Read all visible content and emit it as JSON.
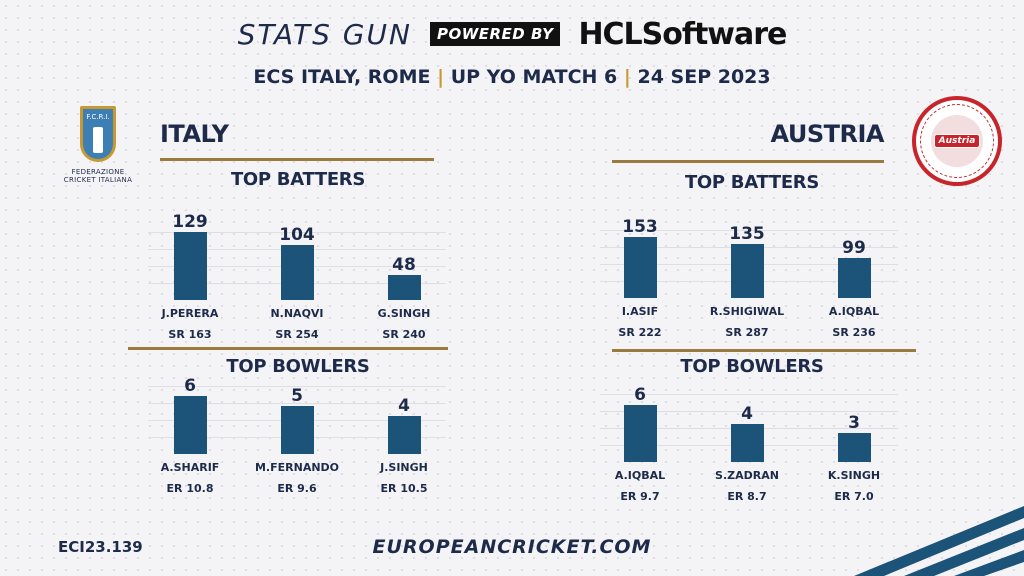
{
  "header": {
    "brand": "STATS GUN",
    "powered_by": "POWERED BY",
    "sponsor": "HCLSoftware",
    "subtitle_parts": [
      "ECS ITALY, ROME",
      "UP YO MATCH 6",
      "24 SEP 2023"
    ],
    "separator": "|"
  },
  "crests": {
    "italy": {
      "shield_text": "F.C.R.I.",
      "caption_lines": [
        "FEDERAZIONE",
        "CRICKET ITALIANA"
      ]
    },
    "austria": {
      "badge_text": "Austria"
    }
  },
  "colors": {
    "bar": "#1b5478",
    "rule": "#9b7a3d",
    "text": "#1d2a4a",
    "accent": "#c69a32"
  },
  "teams": {
    "italy": {
      "name": "ITALY",
      "batters_title": "TOP BATTERS",
      "bowlers_title": "TOP BOWLERS",
      "batters": [
        {
          "name": "J.PERERA",
          "value": 129,
          "sub": "SR 163"
        },
        {
          "name": "N.NAQVI",
          "value": 104,
          "sub": "SR 254"
        },
        {
          "name": "G.SINGH",
          "value": 48,
          "sub": "SR 240"
        }
      ],
      "bowlers": [
        {
          "name": "A.SHARIF",
          "value": 6,
          "sub": "ER 10.8"
        },
        {
          "name": "M.FERNANDO",
          "value": 5,
          "sub": "ER 9.6"
        },
        {
          "name": "J.SINGH",
          "value": 4,
          "sub": "ER 10.5"
        }
      ]
    },
    "austria": {
      "name": "AUSTRIA",
      "batters_title": "TOP BATTERS",
      "bowlers_title": "TOP BOWLERS",
      "batters": [
        {
          "name": "I.ASIF",
          "value": 153,
          "sub": "SR 222"
        },
        {
          "name": "R.SHIGIWAL",
          "value": 135,
          "sub": "SR 287"
        },
        {
          "name": "A.IQBAL",
          "value": 99,
          "sub": "SR 236"
        }
      ],
      "bowlers": [
        {
          "name": "A.IQBAL",
          "value": 6,
          "sub": "ER 9.7"
        },
        {
          "name": "S.ZADRAN",
          "value": 4,
          "sub": "ER 8.7"
        },
        {
          "name": "K.SINGH",
          "value": 3,
          "sub": "ER 7.0"
        }
      ]
    }
  },
  "footer": {
    "code": "ECI23.139",
    "url": "EUROPEANCRICKET.COM"
  }
}
